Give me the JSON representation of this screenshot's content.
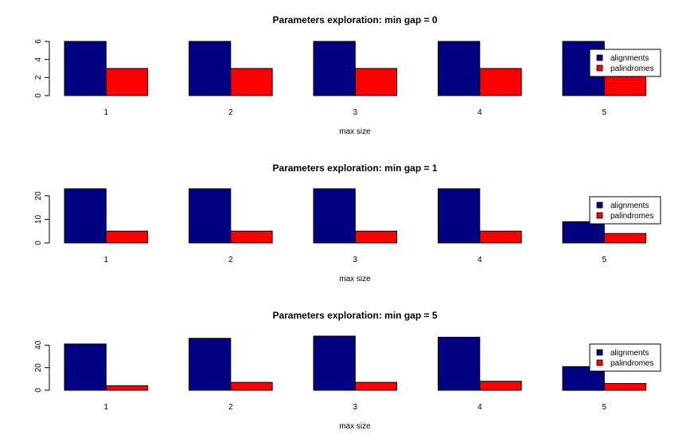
{
  "chart_data": [
    {
      "type": "bar",
      "title": "Parameters exploration: min gap = 0",
      "xlabel": "max size",
      "ylabel": "",
      "categories": [
        "1",
        "2",
        "3",
        "4",
        "5"
      ],
      "series": [
        {
          "name": "alignments",
          "color": "#000080",
          "values": [
            6,
            6,
            6,
            6,
            6
          ]
        },
        {
          "name": "palindromes",
          "color": "#ff0000",
          "values": [
            3,
            3,
            3,
            3,
            3
          ]
        }
      ],
      "yticks": [
        0,
        2,
        4,
        6
      ],
      "ylim": [
        0,
        6
      ],
      "legend": "right"
    },
    {
      "type": "bar",
      "title": "Parameters exploration: min gap = 1",
      "xlabel": "max size",
      "ylabel": "",
      "categories": [
        "1",
        "2",
        "3",
        "4",
        "5"
      ],
      "series": [
        {
          "name": "alignments",
          "color": "#000080",
          "values": [
            23,
            23,
            23,
            23,
            9
          ]
        },
        {
          "name": "palindromes",
          "color": "#ff0000",
          "values": [
            5,
            5,
            5,
            5,
            4
          ]
        }
      ],
      "yticks": [
        0,
        10,
        20
      ],
      "ylim": [
        0,
        23
      ],
      "legend": "right"
    },
    {
      "type": "bar",
      "title": "Parameters exploration: min gap = 5",
      "xlabel": "max size",
      "ylabel": "",
      "categories": [
        "1",
        "2",
        "3",
        "4",
        "5"
      ],
      "series": [
        {
          "name": "alignments",
          "color": "#000080",
          "values": [
            41,
            46,
            48,
            47,
            21
          ]
        },
        {
          "name": "palindromes",
          "color": "#ff0000",
          "values": [
            4,
            7,
            7,
            8,
            6
          ]
        }
      ],
      "yticks": [
        0,
        20,
        40
      ],
      "ylim": [
        0,
        48
      ],
      "legend": "right"
    }
  ]
}
